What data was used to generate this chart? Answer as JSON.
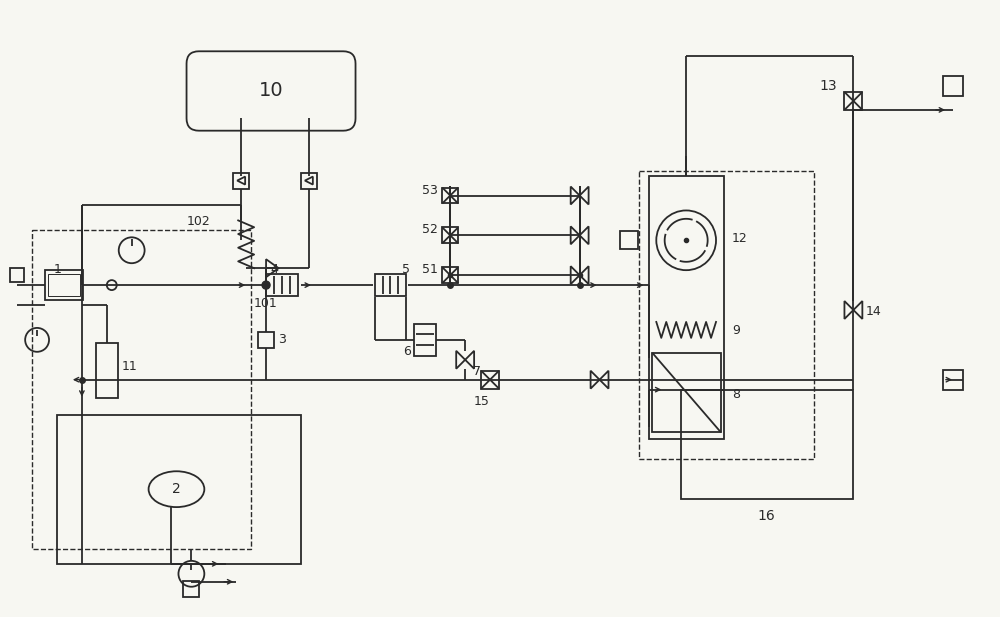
{
  "bg_color": "#f7f7f2",
  "line_color": "#2a2a2a",
  "fig_width": 10.0,
  "fig_height": 6.17,
  "dpi": 100
}
